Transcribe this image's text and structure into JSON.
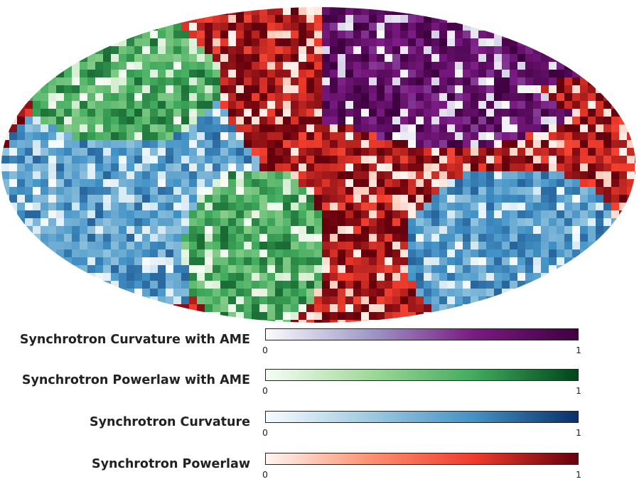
{
  "chart_data": {
    "type": "heatmap",
    "projection": "mollweide",
    "title": "",
    "components": [
      {
        "label": "Synchrotron Curvature with AME",
        "vmin": "0",
        "vmax": "1",
        "cmap": [
          "#fcfbfd",
          "#9e9ac8",
          "#7a1a82",
          "#3f0040"
        ]
      },
      {
        "label": "Synchrotron Powerlaw with AME",
        "vmin": "0",
        "vmax": "1",
        "cmap": [
          "#f7fcf5",
          "#a1d99b",
          "#41ab5d",
          "#00441b"
        ]
      },
      {
        "label": "Synchrotron Curvature",
        "vmin": "0",
        "vmax": "1",
        "cmap": [
          "#f7fbff",
          "#9ecae1",
          "#4292c6",
          "#08306b"
        ]
      },
      {
        "label": "Synchrotron Powerlaw",
        "vmin": "0",
        "vmax": "1",
        "cmap": [
          "#fff5f0",
          "#fc9272",
          "#ef3b2c",
          "#67000d"
        ]
      }
    ]
  }
}
